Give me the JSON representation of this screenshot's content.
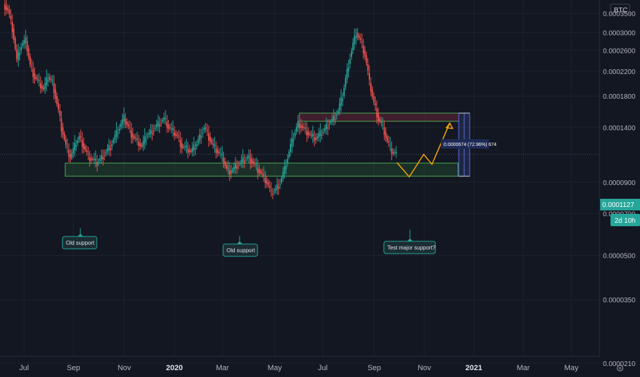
{
  "header": {
    "currency_label": "BTC"
  },
  "price_badge": {
    "price": "0.0001127",
    "countdown": "2d 10h"
  },
  "annotations": {
    "measure_text": "0.0000674 (72.96%) 674",
    "callout_1": "Old  support",
    "callout_2": "Old  support",
    "callout_3": "Test major support?"
  },
  "colors": {
    "background": "#131722",
    "up": "#26a69a",
    "down": "#ef5350",
    "support_zone": "#4caf50",
    "resistance_zone": "#5d2a3a",
    "projection": "#f7a600",
    "measure": "#5b6ee1",
    "badge": "#26a69a"
  },
  "chart_data": {
    "type": "candlestick",
    "symbol_quote": "BTC",
    "scale": "log",
    "ylim": [
      1.9e-05,
      0.00039
    ],
    "yticks": [
      "0.0003500",
      "0.0003000",
      "0.0002600",
      "0.0002200",
      "0.0001800",
      "0.0001400",
      "0.0000900",
      "0.0000700",
      "0.0000500",
      "0.0000350",
      "0.0000210"
    ],
    "xticks": [
      "Jul",
      "Sep",
      "Nov",
      "2020",
      "Mar",
      "May",
      "Jul",
      "Sep",
      "Nov",
      "2021",
      "Mar",
      "May"
    ],
    "last_price": 0.0001127,
    "support_zone": [
      9.45e-05,
      0.000105
    ],
    "resistance_zone": [
      0.000147,
      0.000157
    ],
    "projection_path": [
      0.0001055,
      9.4e-05,
      0.0001127,
      0.000104,
      0.000145
    ],
    "candles_close": [
      0.00036,
      0.00031,
      0.00024,
      0.00027,
      0.00028,
      0.00023,
      0.00021,
      0.0002,
      0.00019,
      0.00021,
      0.0002,
      0.00017,
      0.00014,
      0.00012,
      0.00011,
      0.00012,
      0.00013,
      0.00012,
      0.00011,
      0.000108,
      0.000105,
      0.00011,
      0.000115,
      0.00012,
      0.00013,
      0.00014,
      0.00015,
      0.00014,
      0.00013,
      0.000125,
      0.00012,
      0.00013,
      0.000135,
      0.00014,
      0.000145,
      0.00015,
      0.00014,
      0.000135,
      0.00013,
      0.00012,
      0.000118,
      0.000115,
      0.00012,
      0.00013,
      0.00014,
      0.00013,
      0.00012,
      0.000115,
      0.00011,
      0.0001,
      9.8e-05,
      0.000102,
      0.000105,
      0.000108,
      0.00011,
      0.000105,
      0.0001,
      9.5e-05,
      9e-05,
      8.2e-05,
      8.5e-05,
      9e-05,
      0.0001,
      0.000115,
      0.00013,
      0.000145,
      0.00014,
      0.000135,
      0.00013,
      0.000128,
      0.000132,
      0.000138,
      0.000145,
      0.00015,
      0.00016,
      0.00018,
      0.00022,
      0.00026,
      0.0003,
      0.00028,
      0.00025,
      0.0002,
      0.00017,
      0.00015,
      0.00014,
      0.000125,
      0.000115,
      0.000113
    ]
  }
}
